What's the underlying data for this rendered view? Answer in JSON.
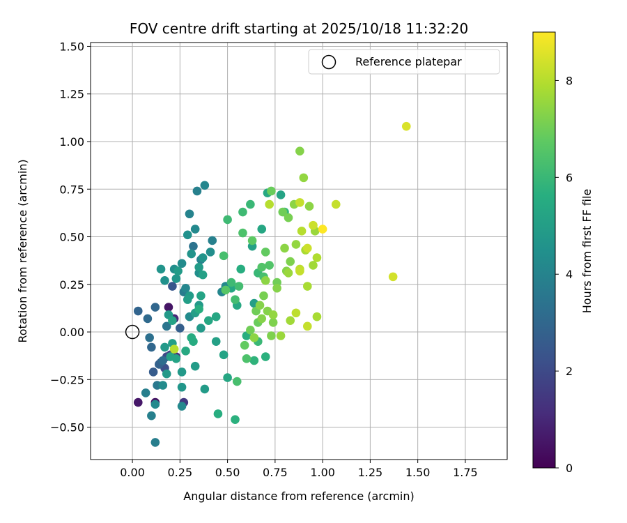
{
  "chart_data": {
    "type": "scatter",
    "title": "FOV centre drift starting at 2025/10/18 11:32:20",
    "xlabel": "Angular distance from reference (arcmin)",
    "ylabel": "Rotation from reference (arcmin)",
    "xlim": [
      -0.22,
      1.97
    ],
    "ylim": [
      -0.67,
      1.52
    ],
    "x_ticks": [
      0.0,
      0.25,
      0.5,
      0.75,
      1.0,
      1.25,
      1.5,
      1.75
    ],
    "x_tick_labels": [
      "0.00",
      "0.25",
      "0.50",
      "0.75",
      "1.00",
      "1.25",
      "1.50",
      "1.75"
    ],
    "y_ticks": [
      -0.5,
      -0.25,
      0.0,
      0.25,
      0.5,
      0.75,
      1.0,
      1.25,
      1.5
    ],
    "y_tick_labels": [
      "−0.50",
      "−0.25",
      "0.00",
      "0.25",
      "0.50",
      "0.75",
      "1.00",
      "1.25",
      "1.50"
    ],
    "grid": true,
    "legend": {
      "label": "Reference platepar",
      "position": "top-right"
    },
    "reference_point": {
      "x": 0.0,
      "y": 0.0
    },
    "colorbar": {
      "label": "Hours from first FF file",
      "range": [
        0,
        9
      ],
      "ticks": [
        0,
        2,
        4,
        6,
        8
      ],
      "tick_labels": [
        "0",
        "2",
        "4",
        "6",
        "8"
      ],
      "colormap": "viridis"
    },
    "series": [
      {
        "name": "FOV centre",
        "x": [
          0.19,
          0.12,
          0.22,
          0.23,
          0.03,
          0.27,
          0.2,
          0.18,
          0.15,
          0.17,
          0.11,
          0.12,
          0.14,
          0.21,
          0.18,
          0.16,
          0.13,
          0.25,
          0.03,
          0.08,
          0.09,
          0.1,
          0.07,
          0.12,
          0.1,
          0.15,
          0.17,
          0.19,
          0.21,
          0.22,
          0.23,
          0.24,
          0.26,
          0.27,
          0.28,
          0.29,
          0.3,
          0.31,
          0.32,
          0.33,
          0.34,
          0.35,
          0.36,
          0.37,
          0.38,
          0.29,
          0.3,
          0.33,
          0.35,
          0.37,
          0.12,
          0.26,
          0.3,
          0.35,
          0.41,
          0.36,
          0.16,
          0.18,
          0.2,
          0.26,
          0.33,
          0.42,
          0.47,
          0.49,
          0.32,
          0.44,
          0.52,
          0.55,
          0.57,
          0.63,
          0.68,
          0.71,
          0.64,
          0.38,
          0.26,
          0.17,
          0.21,
          0.23,
          0.28,
          0.31,
          0.35,
          0.36,
          0.4,
          0.44,
          0.48,
          0.5,
          0.54,
          0.6,
          0.64,
          0.7,
          0.78,
          0.8,
          0.66,
          0.58,
          0.62,
          0.54,
          0.5,
          0.48,
          0.52,
          0.56,
          0.45,
          0.66,
          0.69,
          0.72,
          0.58,
          0.63,
          0.68,
          0.49,
          0.55,
          0.6,
          0.7,
          0.73,
          0.79,
          0.82,
          0.65,
          0.74,
          0.76,
          0.81,
          0.85,
          0.88,
          0.9,
          0.93,
          0.96,
          0.97,
          0.86,
          0.8,
          0.83,
          0.76,
          0.69,
          0.66,
          0.71,
          0.73,
          0.62,
          0.59,
          0.7,
          0.67,
          0.74,
          0.78,
          0.83,
          0.92,
          0.95,
          0.91,
          0.97,
          0.89,
          0.88,
          0.92,
          0.88,
          0.72,
          0.68,
          0.64,
          0.86,
          1.07,
          0.95,
          0.88,
          0.92,
          1.37,
          1.44,
          1.0,
          0.22,
          0.82
        ],
        "y": [
          0.13,
          -0.37,
          0.07,
          -0.13,
          -0.37,
          -0.37,
          -0.12,
          -0.13,
          -0.16,
          -0.19,
          -0.21,
          0.13,
          -0.17,
          0.24,
          0.03,
          -0.15,
          -0.28,
          0.02,
          0.11,
          0.07,
          -0.03,
          -0.08,
          -0.32,
          -0.38,
          -0.44,
          0.33,
          0.27,
          0.09,
          0.06,
          0.33,
          0.28,
          0.32,
          0.36,
          0.21,
          0.23,
          0.51,
          0.62,
          0.41,
          0.45,
          0.54,
          0.74,
          0.31,
          0.38,
          0.39,
          0.77,
          0.17,
          0.19,
          0.1,
          0.34,
          0.3,
          -0.58,
          -0.39,
          0.08,
          0.14,
          0.42,
          0.02,
          -0.28,
          -0.22,
          -0.13,
          -0.21,
          -0.18,
          0.48,
          0.21,
          0.24,
          -0.05,
          0.08,
          0.23,
          0.14,
          0.33,
          0.45,
          0.54,
          0.73,
          0.15,
          -0.3,
          -0.29,
          -0.08,
          -0.06,
          -0.14,
          -0.1,
          -0.03,
          0.12,
          0.19,
          0.06,
          -0.05,
          -0.12,
          -0.24,
          -0.46,
          -0.02,
          -0.15,
          -0.13,
          0.72,
          0.63,
          0.31,
          0.63,
          0.67,
          0.17,
          0.59,
          0.4,
          0.26,
          0.24,
          -0.43,
          -0.05,
          0.29,
          0.35,
          0.52,
          0.48,
          0.34,
          0.22,
          -0.26,
          -0.14,
          0.42,
          0.74,
          0.63,
          0.6,
          0.11,
          0.05,
          0.26,
          0.32,
          0.67,
          0.95,
          0.81,
          0.66,
          0.53,
          0.08,
          0.46,
          0.44,
          0.37,
          0.23,
          0.19,
          0.05,
          0.11,
          -0.02,
          0.01,
          -0.07,
          0.27,
          0.14,
          0.09,
          -0.02,
          0.06,
          0.24,
          0.35,
          0.43,
          0.39,
          0.53,
          0.33,
          0.03,
          0.68,
          0.67,
          0.07,
          -0.03,
          0.1,
          0.67,
          0.56,
          0.32,
          0.44,
          0.29,
          1.08,
          0.54,
          -0.09,
          0.31
        ],
        "hours": [
          0.5,
          0.4,
          1.0,
          1.2,
          0.6,
          1.5,
          1.8,
          2.0,
          2.5,
          2.2,
          2.6,
          3.0,
          2.8,
          2.4,
          3.5,
          3.2,
          3.6,
          2.7,
          2.9,
          3.1,
          3.3,
          3.0,
          3.8,
          4.2,
          3.9,
          4.6,
          4.5,
          4.8,
          5.2,
          4.4,
          4.7,
          4.9,
          4.3,
          3.7,
          4.1,
          4.5,
          4.0,
          4.6,
          3.4,
          4.2,
          3.9,
          4.4,
          4.0,
          4.6,
          4.1,
          5.0,
          4.9,
          5.0,
          4.9,
          5.1,
          3.8,
          4.2,
          4.3,
          4.8,
          4.4,
          4.8,
          4.3,
          4.8,
          5.2,
          4.8,
          4.9,
          3.9,
          4.1,
          4.2,
          5.5,
          5.3,
          5.3,
          5.4,
          5.6,
          5.1,
          5.3,
          5.4,
          5.0,
          4.9,
          4.7,
          4.8,
          5.0,
          5.2,
          5.4,
          5.5,
          5.6,
          5.2,
          5.3,
          5.1,
          5.2,
          5.3,
          5.7,
          5.6,
          5.8,
          5.7,
          5.2,
          5.9,
          6.0,
          6.1,
          6.0,
          6.2,
          6.1,
          6.3,
          6.1,
          6.2,
          5.6,
          6.0,
          6.3,
          6.5,
          6.4,
          6.7,
          6.5,
          6.6,
          6.3,
          6.4,
          6.8,
          6.9,
          7.0,
          7.1,
          7.0,
          7.2,
          7.0,
          7.3,
          7.4,
          7.3,
          7.5,
          7.4,
          7.6,
          7.8,
          7.5,
          7.4,
          7.2,
          7.3,
          7.1,
          6.9,
          7.3,
          7.2,
          7.0,
          6.8,
          7.4,
          7.3,
          7.5,
          7.6,
          7.7,
          7.8,
          7.7,
          7.8,
          7.9,
          8.0,
          8.1,
          8.2,
          8.2,
          8.0,
          7.3,
          7.4,
          8.1,
          8.2,
          8.3,
          8.2,
          8.3,
          8.4,
          8.5,
          9.0,
          8.0,
          7.6
        ]
      }
    ]
  }
}
